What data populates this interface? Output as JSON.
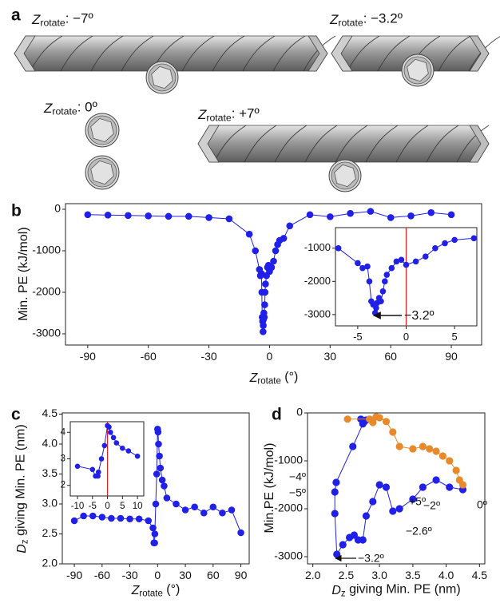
{
  "panel_letters": [
    "a",
    "b",
    "c",
    "d"
  ],
  "panel_a": {
    "labels": [
      {
        "symbol": "Z",
        "subscript": "rotate",
        "text": ": −7º"
      },
      {
        "symbol": "Z",
        "subscript": "rotate",
        "text": ": −3.2º"
      },
      {
        "symbol": "Z",
        "subscript": "rotate",
        "text": ": 0º"
      },
      {
        "symbol": "Z",
        "subscript": "rotate",
        "text": ": +7º"
      }
    ]
  },
  "chart_data": [
    {
      "type": "scatter-line",
      "ylabel": "Min. PE (kJ/mol)",
      "xlabel": {
        "symbol": "Z",
        "subscript": "rotate",
        "text": " (°)"
      },
      "x": [
        -90,
        -80,
        -70,
        -60,
        -50,
        -40,
        -30,
        -20,
        -10,
        -7,
        -5,
        -4.5,
        -4,
        -3.8,
        -3.6,
        -3.4,
        -3.2,
        -3.1,
        -3,
        -2.8,
        -2.6,
        -2.4,
        -2.2,
        -2,
        -1.5,
        -1,
        -0.5,
        0,
        1,
        2,
        3,
        4,
        5,
        7,
        10,
        20,
        30,
        40,
        50,
        60,
        70,
        80,
        90
      ],
      "series": [
        {
          "color": "#2020e8",
          "values": [
            -130,
            -140,
            -150,
            -160,
            -170,
            -170,
            -200,
            -230,
            -600,
            -1000,
            -1450,
            -1600,
            -1550,
            -2000,
            -2600,
            -2700,
            -2950,
            -2800,
            -2650,
            -2500,
            -2600,
            -2300,
            -2000,
            -1800,
            -1600,
            -1400,
            -1350,
            -1500,
            -1400,
            -1250,
            -1000,
            -850,
            -750,
            -700,
            -400,
            -130,
            -180,
            -100,
            -50,
            -200,
            -160,
            -80,
            -130
          ]
        }
      ],
      "xlim": [
        -101,
        105
      ],
      "ylim": [
        -3270,
        135
      ],
      "xticks": [
        -90,
        -60,
        -30,
        0,
        30,
        60,
        90
      ],
      "yticks": [
        0,
        -1000,
        -2000,
        -3000
      ]
    },
    {
      "type": "scatter-line",
      "annotations": [
        {
          "text": "−3.2º",
          "color": "#2020e8"
        }
      ],
      "x": [
        -7,
        -5,
        -4.5,
        -4,
        -3.8,
        -3.6,
        -3.4,
        -3.2,
        -3.1,
        -3,
        -2.8,
        -2.6,
        -2.4,
        -2.2,
        -2,
        -1.5,
        -1,
        -0.5,
        0,
        1,
        2,
        3,
        4,
        5,
        7
      ],
      "series": [
        {
          "color": "#2020e8",
          "values": [
            -1000,
            -1450,
            -1600,
            -1550,
            -2000,
            -2600,
            -2700,
            -2950,
            -2800,
            -2650,
            -2500,
            -2600,
            -2300,
            -2000,
            -1800,
            -1600,
            -1400,
            -1350,
            -1500,
            -1400,
            -1250,
            -1000,
            -850,
            -750,
            -700
          ]
        }
      ],
      "ref_line": {
        "x": 0,
        "color": "#e82020"
      },
      "xlim": [
        -7.3,
        7.3
      ],
      "ylim": [
        -3340,
        -380
      ],
      "xticks": [
        -5,
        0,
        5
      ],
      "yticks": [
        -1000,
        -2000,
        -3000
      ]
    },
    {
      "type": "scatter-line",
      "ylabel": {
        "symbol": "D",
        "subscript": "z",
        "text": " giving Min. PE (nm)"
      },
      "xlabel": {
        "symbol": "Z",
        "subscript": "rotate",
        "text": " (°)"
      },
      "x": [
        -90,
        -80,
        -70,
        -60,
        -50,
        -40,
        -30,
        -20,
        -10,
        -5,
        -4,
        -3.2,
        -3,
        -2,
        -1,
        0,
        0.5,
        1,
        2,
        3,
        5,
        7,
        10,
        20,
        30,
        40,
        50,
        60,
        70,
        80,
        90
      ],
      "series": [
        {
          "color": "#2020e8",
          "values": [
            2.72,
            2.8,
            2.8,
            2.78,
            2.76,
            2.76,
            2.75,
            2.75,
            2.72,
            2.6,
            2.35,
            2.35,
            2.5,
            3.0,
            3.5,
            4.25,
            4.2,
            4.0,
            3.8,
            3.6,
            3.4,
            3.3,
            3.1,
            3.0,
            2.9,
            2.95,
            2.85,
            2.95,
            2.85,
            2.9,
            2.52
          ]
        }
      ],
      "xlim": [
        -103,
        99
      ],
      "ylim": [
        2.0,
        4.52
      ],
      "xticks": [
        -90,
        -60,
        -30,
        0,
        30,
        60,
        90
      ],
      "yticks": [
        {
          "value": 2.0,
          "label": "2.0"
        },
        2.5,
        {
          "value": 3.0,
          "label": "3.0"
        },
        3.5,
        {
          "value": 4.0,
          "label": "4.0"
        },
        4.5
      ]
    },
    {
      "type": "scatter-line",
      "x": [
        -10,
        -5,
        -4,
        -3.2,
        -3,
        -2,
        -1,
        0,
        0.5,
        1,
        2,
        3,
        5,
        7,
        10
      ],
      "series": [
        {
          "color": "#2020e8",
          "values": [
            2.72,
            2.6,
            2.35,
            2.35,
            2.5,
            3.0,
            3.5,
            4.25,
            4.2,
            4.0,
            3.8,
            3.6,
            3.4,
            3.3,
            3.1
          ]
        }
      ],
      "ref_line": {
        "x": 0,
        "color": "#e82020"
      },
      "xlim": [
        -12.4,
        12.1
      ],
      "ylim": [
        1.6,
        4.4
      ],
      "xticks": [
        -10,
        -5,
        0,
        5,
        10
      ],
      "yticks": [
        2,
        3,
        4
      ]
    },
    {
      "type": "scatter-line",
      "ylabel": "Min.PE (kJ/mol)",
      "xlabel": {
        "symbol": "D",
        "subscript": "z",
        "text": " giving Min. PE (nm)"
      },
      "series": [
        {
          "color": "#2020e8",
          "x": [
            2.72,
            2.8,
            2.78,
            2.76,
            2.75,
            2.6,
            2.35,
            2.33,
            2.33,
            2.36,
            2.45,
            2.55,
            2.62,
            2.68,
            2.75,
            2.8,
            2.9,
            3.0,
            3.1,
            3.2,
            3.3,
            3.5,
            3.65,
            3.85,
            4.05,
            4.25
          ],
          "values": [
            -130,
            -150,
            -170,
            -200,
            -230,
            -700,
            -1450,
            -1650,
            -2100,
            -2950,
            -2750,
            -2600,
            -2550,
            -2650,
            -2650,
            -2150,
            -1850,
            -1500,
            -1550,
            -2050,
            -2000,
            -1800,
            -1550,
            -1400,
            -1550,
            -1600
          ]
        },
        {
          "color": "#e8892b",
          "x": [
            2.52,
            2.85,
            2.95,
            2.9,
            3.0,
            3.1,
            3.2,
            3.3,
            3.5,
            3.65,
            3.75,
            3.85,
            3.95,
            4.05,
            4.15,
            4.2,
            4.25
          ],
          "values": [
            -130,
            -130,
            -80,
            -200,
            -100,
            -180,
            -400,
            -700,
            -750,
            -700,
            -750,
            -800,
            -900,
            -1000,
            -1200,
            -1400,
            -1500
          ]
        }
      ],
      "annotations": [
        {
          "text": "−4º",
          "color": "#2020e8"
        },
        {
          "text": "−5º",
          "color": "#2020e8"
        },
        {
          "text": "−2º",
          "color": "#2020e8"
        },
        {
          "text": "−2.6º",
          "color": "#2020e8"
        },
        {
          "text": "−3.2º",
          "color": "#2020e8"
        },
        {
          "text": "+5º",
          "color": "#e8892b"
        },
        {
          "text": "0º",
          "color": "#e8892b"
        }
      ],
      "xlim": [
        1.92,
        4.58
      ],
      "ylim": [
        -3150,
        0
      ],
      "xticks": [
        {
          "value": 2.0,
          "label": "2.0"
        },
        2.5,
        {
          "value": 3.0,
          "label": "3.0"
        },
        3.5,
        {
          "value": 4.0,
          "label": "4.0"
        },
        4.5
      ],
      "yticks": [
        0,
        -1000,
        -2000,
        -3000
      ]
    }
  ]
}
